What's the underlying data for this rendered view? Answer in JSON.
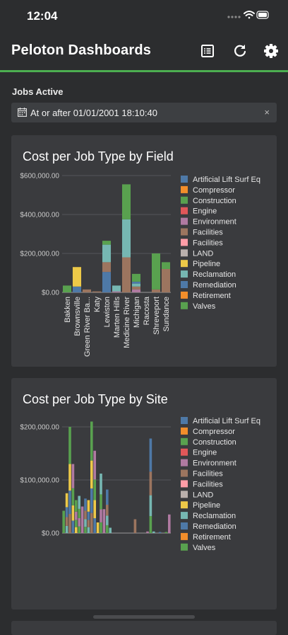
{
  "status": {
    "time": "12:04"
  },
  "appbar": {
    "title": "Peloton Dashboards"
  },
  "filter": {
    "label": "Jobs Active",
    "value": "At or after 01/01/2001 18:10:40",
    "clear": "×"
  },
  "chart_data": [
    {
      "type": "bar",
      "stacked": true,
      "title": "Cost per Job Type by Field",
      "yticks": [
        "$0.00",
        "$200,000.00",
        "$400,000.00",
        "$600,000.00"
      ],
      "ylim": [
        0,
        600000
      ],
      "legend_position": "right",
      "categories": [
        "Bakken",
        "Brownsville",
        "Green River Ba...",
        "Katy",
        "Lewiston",
        "Marten Hills",
        "Medicine River",
        "Michigan",
        "Racosta",
        "Shreveport",
        "Sundance"
      ],
      "series": [
        {
          "name": "Artificial Lift Surf Eq",
          "color": "#4e79a7",
          "values": [
            0,
            30000,
            0,
            0,
            105000,
            0,
            0,
            0,
            0,
            0,
            0
          ]
        },
        {
          "name": "Compressor",
          "color": "#f28e2b",
          "values": [
            0,
            0,
            0,
            0,
            0,
            0,
            0,
            0,
            0,
            0,
            0
          ]
        },
        {
          "name": "Construction",
          "color": "#59a14f",
          "values": [
            0,
            0,
            0,
            0,
            0,
            0,
            0,
            0,
            0,
            0,
            0
          ]
        },
        {
          "name": "Engine",
          "color": "#e15759",
          "values": [
            0,
            0,
            0,
            0,
            0,
            0,
            0,
            0,
            0,
            0,
            0
          ]
        },
        {
          "name": "Environment",
          "color": "#b07aa1",
          "values": [
            0,
            0,
            0,
            0,
            0,
            5000,
            0,
            15000,
            0,
            0,
            0
          ]
        },
        {
          "name": "Facilities",
          "color": "#9c755f",
          "values": [
            0,
            0,
            15000,
            5000,
            50000,
            0,
            180000,
            15000,
            0,
            15000,
            120000
          ]
        },
        {
          "name": "Facilities",
          "color": "#ff9da7",
          "values": [
            0,
            0,
            0,
            0,
            0,
            0,
            0,
            0,
            0,
            0,
            0
          ]
        },
        {
          "name": "LAND",
          "color": "#bab0ac",
          "values": [
            0,
            0,
            0,
            0,
            0,
            0,
            0,
            0,
            0,
            0,
            0
          ]
        },
        {
          "name": "Pipeline",
          "color": "#edc948",
          "values": [
            0,
            100000,
            0,
            0,
            0,
            0,
            0,
            0,
            0,
            0,
            0
          ]
        },
        {
          "name": "Reclamation",
          "color": "#76b7b2",
          "values": [
            0,
            0,
            0,
            0,
            90000,
            30000,
            195000,
            15000,
            0,
            0,
            0
          ]
        },
        {
          "name": "Remediation",
          "color": "#4e79a7",
          "values": [
            0,
            0,
            0,
            0,
            0,
            0,
            0,
            10000,
            0,
            0,
            0
          ]
        },
        {
          "name": "Retirement",
          "color": "#f28e2b",
          "values": [
            0,
            0,
            0,
            0,
            0,
            0,
            0,
            0,
            0,
            0,
            0
          ]
        },
        {
          "name": "Valves",
          "color": "#59a14f",
          "values": [
            35000,
            0,
            0,
            0,
            20000,
            0,
            180000,
            40000,
            0,
            185000,
            35000
          ]
        }
      ]
    },
    {
      "type": "bar",
      "stacked": true,
      "title": "Cost per Job Type by Site",
      "yticks": [
        "$0.00",
        "$100,000.00",
        "$200,000.00"
      ],
      "ylim": [
        0,
        215000
      ],
      "legend_position": "right",
      "site_totals": [
        42000,
        75000,
        200000,
        130000,
        62000,
        70000,
        50000,
        65000,
        62000,
        210000,
        155000,
        20000,
        112000,
        45000,
        82000,
        10000,
        0,
        0,
        0,
        0,
        0,
        0,
        0,
        26000,
        0,
        0,
        0,
        3000,
        178000,
        3000,
        0,
        2000,
        0,
        2000,
        35000
      ],
      "series": [
        {
          "name": "Artificial Lift Surf Eq",
          "color": "#4e79a7"
        },
        {
          "name": "Compressor",
          "color": "#f28e2b"
        },
        {
          "name": "Construction",
          "color": "#59a14f"
        },
        {
          "name": "Engine",
          "color": "#e15759"
        },
        {
          "name": "Environment",
          "color": "#b07aa1"
        },
        {
          "name": "Facilities",
          "color": "#9c755f"
        },
        {
          "name": "Facilities",
          "color": "#ff9da7"
        },
        {
          "name": "LAND",
          "color": "#bab0ac"
        },
        {
          "name": "Pipeline",
          "color": "#edc948"
        },
        {
          "name": "Reclamation",
          "color": "#76b7b2"
        },
        {
          "name": "Remediation",
          "color": "#4e79a7"
        },
        {
          "name": "Retirement",
          "color": "#f28e2b"
        },
        {
          "name": "Valves",
          "color": "#59a14f"
        }
      ]
    }
  ]
}
